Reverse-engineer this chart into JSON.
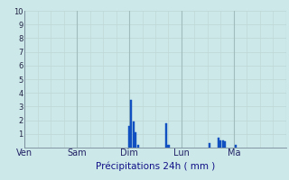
{
  "title": "Précipitations 24h ( mm )",
  "background_color": "#cce8e8",
  "grid_color_minor": "#c0d8d8",
  "grid_color_major": "#a0bcbc",
  "bar_color": "#1050c0",
  "ylim": [
    0,
    10
  ],
  "yticks": [
    0,
    1,
    2,
    3,
    4,
    5,
    6,
    7,
    8,
    9,
    10
  ],
  "day_labels": [
    "Ven",
    "Sam",
    "Dim",
    "Lun",
    "Ma"
  ],
  "day_positions": [
    0,
    24,
    48,
    72,
    96
  ],
  "total_hours": 120,
  "bar_data": [
    {
      "hour": 48,
      "value": 1.6
    },
    {
      "hour": 49,
      "value": 3.5
    },
    {
      "hour": 50,
      "value": 1.9
    },
    {
      "hour": 51,
      "value": 1.1
    },
    {
      "hour": 52,
      "value": 0.2
    },
    {
      "hour": 65,
      "value": 1.8
    },
    {
      "hour": 66,
      "value": 0.2
    },
    {
      "hour": 85,
      "value": 0.3
    },
    {
      "hour": 89,
      "value": 0.7
    },
    {
      "hour": 90,
      "value": 0.55
    },
    {
      "hour": 91,
      "value": 0.55
    },
    {
      "hour": 92,
      "value": 0.45
    },
    {
      "hour": 97,
      "value": 0.2
    }
  ]
}
